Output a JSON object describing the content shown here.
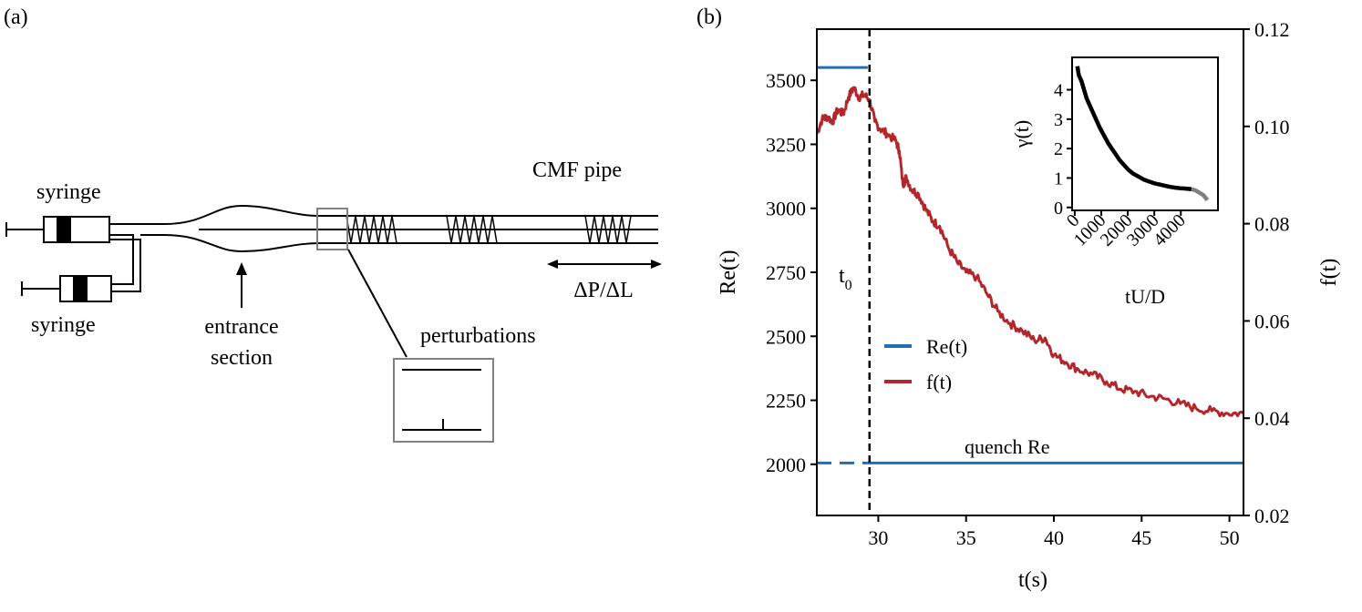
{
  "panel_a": {
    "label": "(a)",
    "syringe_top_label": "syringe",
    "syringe_bottom_label": "syringe",
    "entrance_label_line1": "entrance",
    "entrance_label_line2": "section",
    "pipe_label": "CMF pipe",
    "pressure_label": "ΔP/ΔL",
    "perturbations_label": "perturbations"
  },
  "panel_b": {
    "label": "(b)",
    "t0_label": "t",
    "t0_sub": "0",
    "quench_label": "quench Re",
    "legend": [
      "Re(t)",
      "f(t)"
    ],
    "colors": {
      "re": "#1f6fb4",
      "f": "#b3262b",
      "inset_tail": "#808080"
    }
  },
  "chart_data": [
    {
      "type": "line",
      "xlabel": "t(s)",
      "ylabel": "Re(t)",
      "y2label": "f(t)",
      "xlim": [
        26.5,
        50.8
      ],
      "ylim": [
        1800,
        3700
      ],
      "y2lim": [
        0.02,
        0.12
      ],
      "xticks": [
        30,
        35,
        40,
        45,
        50
      ],
      "yticks": [
        2000,
        2250,
        2500,
        2750,
        3000,
        3250,
        3500
      ],
      "y2ticks": [
        "0.02",
        "0.04",
        "0.06",
        "0.08",
        "0.10",
        "0.12"
      ],
      "t0": 29.5,
      "series": [
        {
          "name": "Re(t)",
          "axis": "left",
          "segments": [
            {
              "x": [
                26.5,
                29.4
              ],
              "y": [
                3550,
                3550
              ],
              "style": "solid"
            },
            {
              "x": [
                26.5,
                29.4
              ],
              "y": [
                2005,
                2005
              ],
              "style": "dashed"
            },
            {
              "x": [
                29.4,
                50.8
              ],
              "y": [
                2005,
                2005
              ],
              "style": "solid"
            }
          ]
        },
        {
          "name": "f(t)",
          "axis": "right",
          "x": [
            26.5,
            26.8,
            27.1,
            27.4,
            27.7,
            28.0,
            28.3,
            28.6,
            28.9,
            29.2,
            29.5,
            29.8,
            30.1,
            30.5,
            31.0,
            31.2,
            31.4,
            31.6,
            31.9,
            32.3,
            32.7,
            33.1,
            33.5,
            34.0,
            34.5,
            35.0,
            35.6,
            36.2,
            36.8,
            37.5,
            38.2,
            38.9,
            39.5,
            40.0,
            40.7,
            41.4,
            42.2,
            43.0,
            43.8,
            44.6,
            45.5,
            46.3,
            47.2,
            48.1,
            49.0,
            49.9,
            50.8
          ],
          "y": [
            0.0985,
            0.1015,
            0.102,
            0.101,
            0.1035,
            0.1025,
            0.106,
            0.108,
            0.106,
            0.1065,
            0.1055,
            0.101,
            0.0995,
            0.0985,
            0.097,
            0.095,
            0.088,
            0.0895,
            0.087,
            0.086,
            0.083,
            0.0805,
            0.0795,
            0.075,
            0.072,
            0.07,
            0.069,
            0.0655,
            0.062,
            0.0595,
            0.058,
            0.056,
            0.0565,
            0.053,
            0.0515,
            0.05,
            0.049,
            0.0475,
            0.046,
            0.0455,
            0.0445,
            0.044,
            0.043,
            0.042,
            0.0415,
            0.041,
            0.041
          ]
        }
      ]
    },
    {
      "type": "line",
      "xlabel": "tU/D",
      "ylabel": "γ(t)",
      "xlim": [
        -100,
        5400
      ],
      "ylim": [
        -0.1,
        5.1
      ],
      "xticks": [
        0,
        1000,
        2000,
        3000,
        4000
      ],
      "yticks": [
        0,
        1,
        2,
        3,
        4
      ],
      "series": [
        {
          "name": "main",
          "x": [
            100,
            150,
            250,
            350,
            450,
            550,
            650,
            750,
            850,
            950,
            1100,
            1250,
            1400,
            1550,
            1700,
            1850,
            2000,
            2200,
            2400,
            2600,
            2800,
            3000,
            3200,
            3400,
            3600,
            3800,
            4000,
            4200,
            4400
          ],
          "y": [
            4.8,
            4.5,
            4.3,
            4.0,
            3.7,
            3.5,
            3.3,
            3.1,
            2.9,
            2.7,
            2.45,
            2.2,
            2.0,
            1.8,
            1.6,
            1.45,
            1.3,
            1.15,
            1.05,
            0.95,
            0.88,
            0.82,
            0.78,
            0.74,
            0.7,
            0.67,
            0.65,
            0.64,
            0.62
          ]
        },
        {
          "name": "tail",
          "x": [
            4400,
            4550,
            4700,
            4850,
            5000
          ],
          "y": [
            0.62,
            0.58,
            0.5,
            0.42,
            0.25
          ]
        }
      ]
    }
  ]
}
